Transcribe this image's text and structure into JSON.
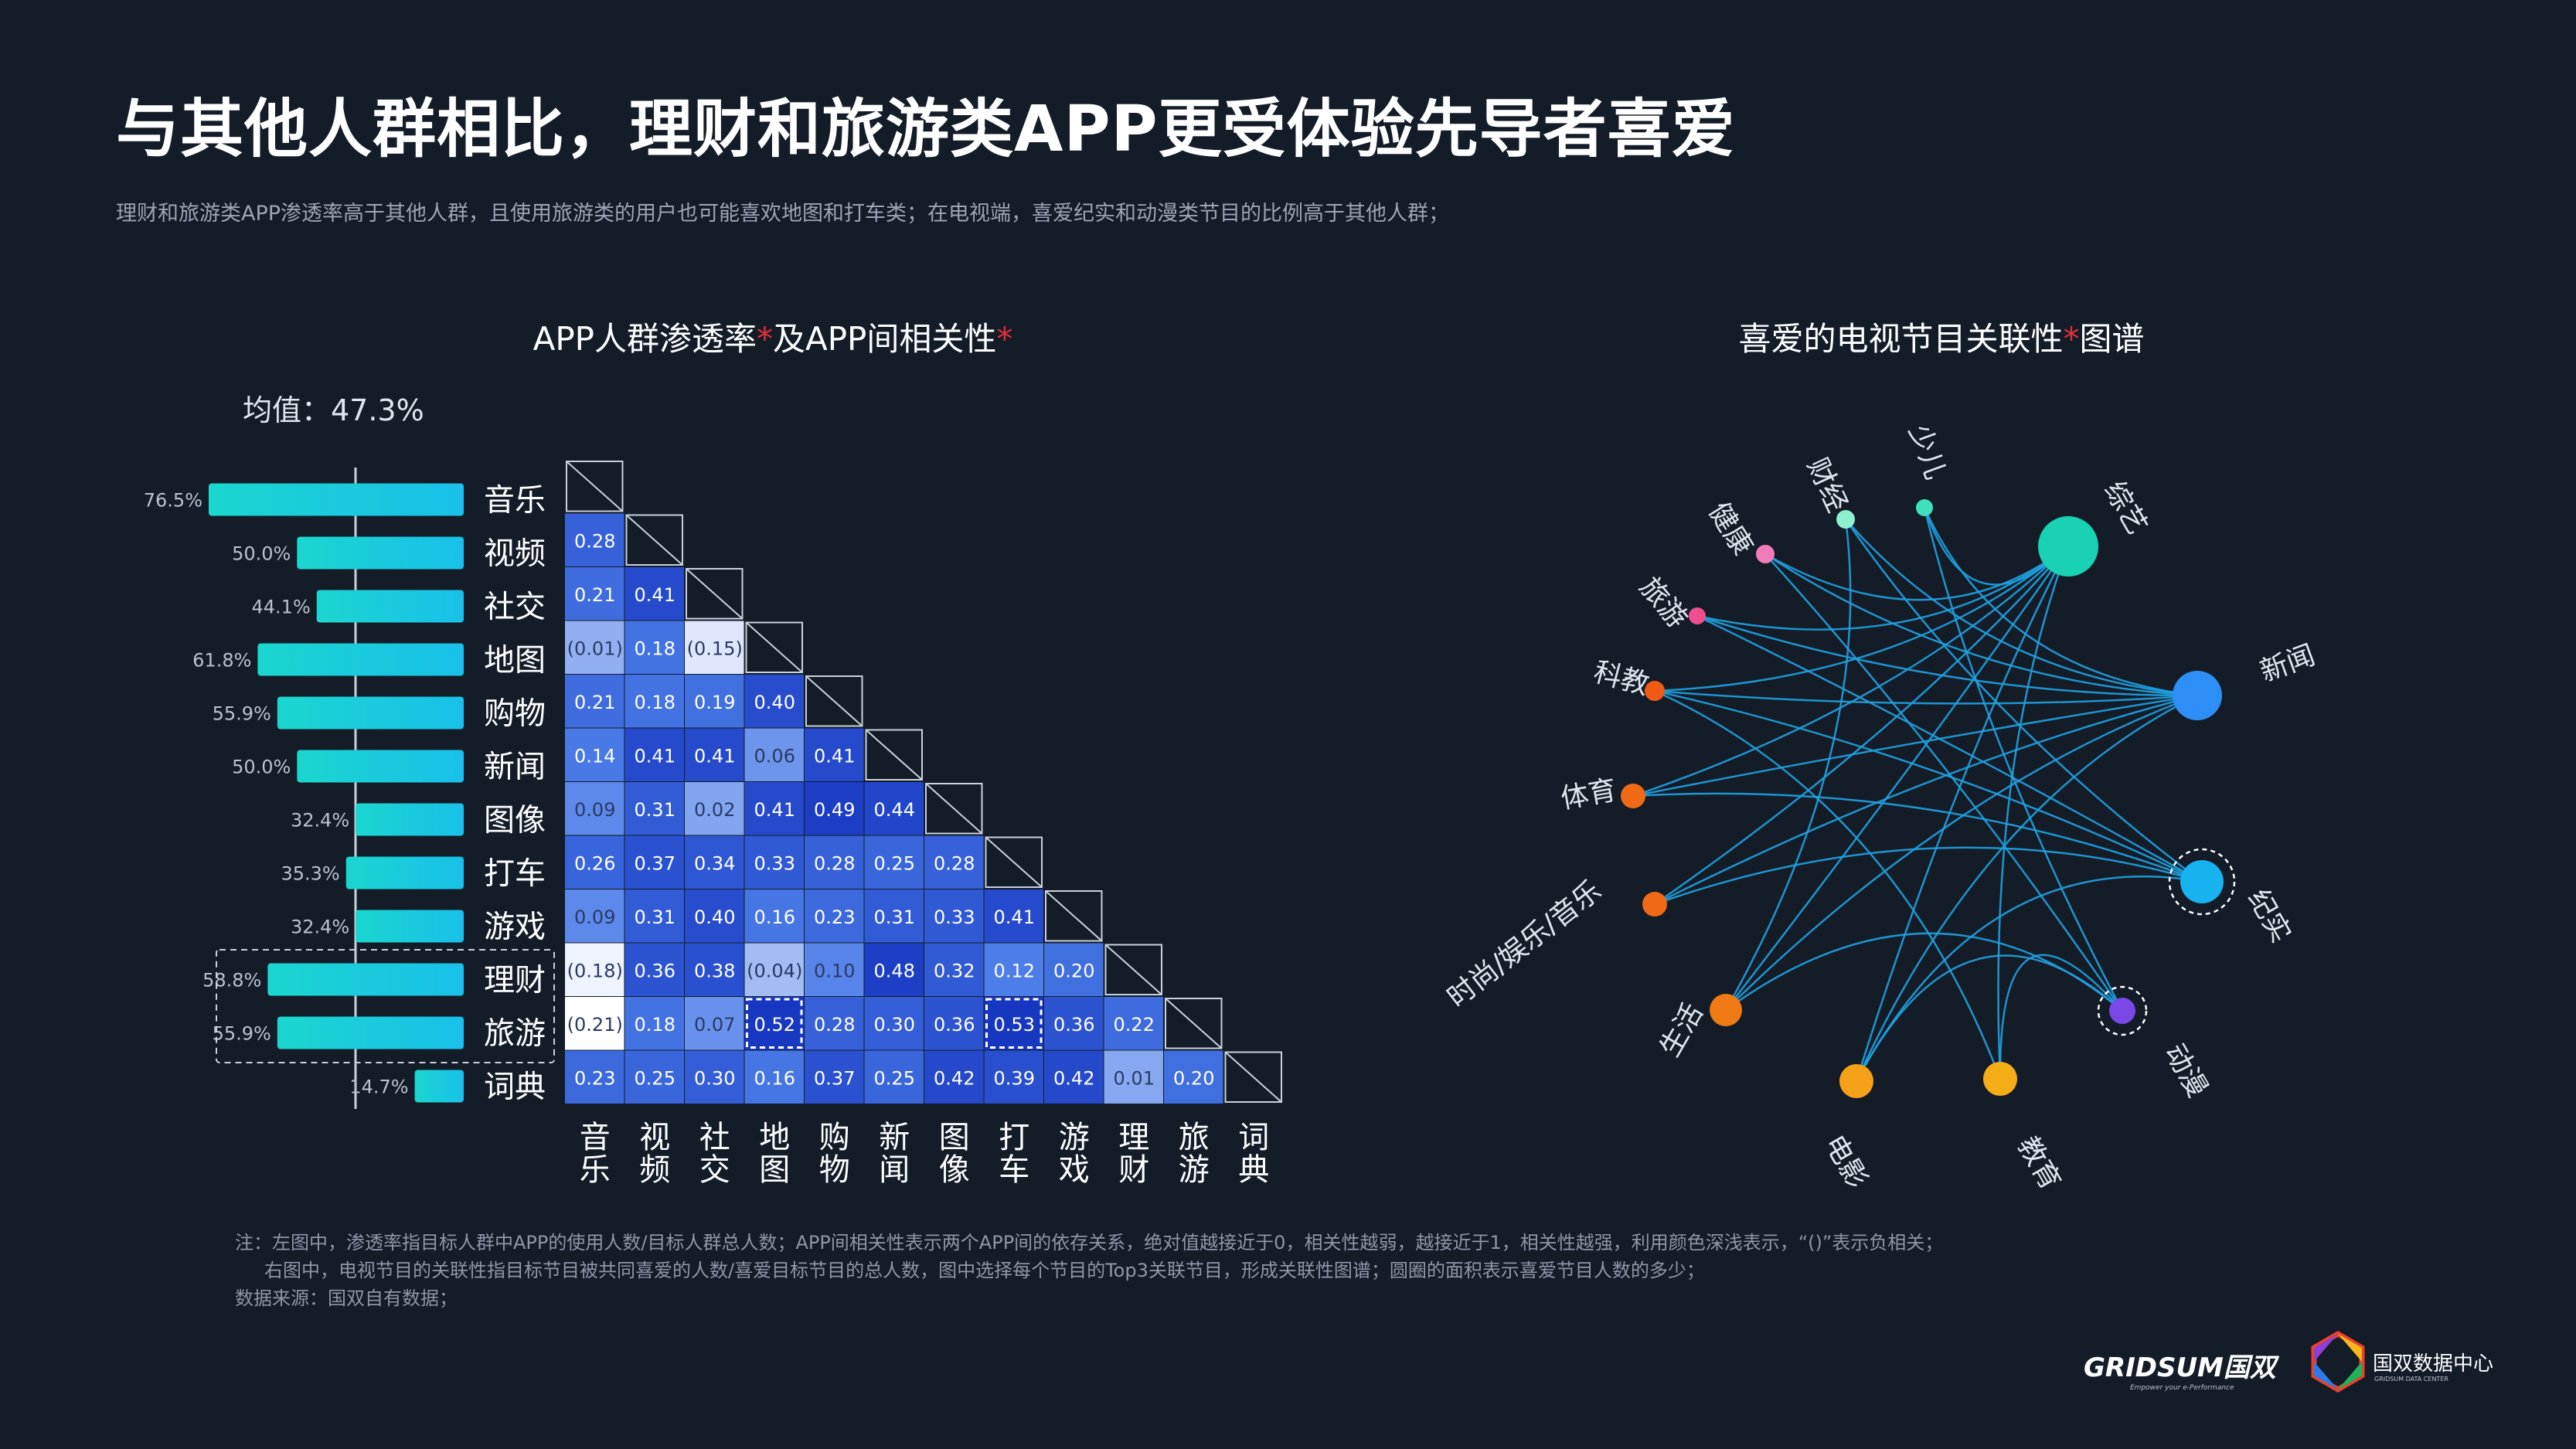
{
  "title": "与其他人群相比，理财和旅游类APP更受体验先导者喜爱",
  "subtitle": "理财和旅游类APP渗透率高于其他人群，且使用旅游类的用户也可能喜欢地图和打车类；在电视端，喜爱纪实和动漫类节目的比例高于其他人群；",
  "left_panel": {
    "title": "APP人群渗透率",
    "title_mid": "及APP间相关性",
    "star": "*"
  },
  "right_panel": {
    "title": "喜爱的电视节目关联性",
    "title_end": "图谱",
    "star": "*"
  },
  "mean_label": "均值：47.3%",
  "notes": {
    "line1": "注：左图中，渗透率指目标人群中APP的使用人数/目标人群总人数；APP间相关性表示两个APP间的依存关系，绝对值越接近于0，相关性越弱，越接近于1，相关性越强，利用颜色深浅表示，“()”表示负相关；",
    "line2": "右图中，电视节目的关联性指目标节目被共同喜爱的人数/喜爱目标节目的总人数，图中选择每个节目的Top3关联节目，形成关联性图谱；圆圈的面积表示喜爱节目人数的多少；",
    "line3": "数据来源：国双自有数据；"
  },
  "logos": {
    "gridsum": "GRIDSUM国双",
    "gridsum_sub": "Empower your e-Performance",
    "center": "国双数据中心",
    "center_sub": "GRIDSUM DATA CENTER"
  },
  "chart_data": [
    {
      "type": "bar",
      "orientation": "horizontal",
      "title": "APP人群渗透率",
      "categories": [
        "音乐",
        "视频",
        "社交",
        "地图",
        "购物",
        "新闻",
        "图像",
        "打车",
        "游戏",
        "理财",
        "旅游",
        "词典"
      ],
      "values": [
        76.5,
        50.0,
        44.1,
        61.8,
        55.9,
        50.0,
        32.4,
        35.3,
        32.4,
        58.8,
        55.9,
        14.7
      ],
      "value_labels": [
        "76.5%",
        "50.0%",
        "44.1%",
        "61.8%",
        "55.9%",
        "50.0%",
        "32.4%",
        "35.3%",
        "32.4%",
        "58.8%",
        "55.9%",
        "14.7%"
      ],
      "unit": "%",
      "mean": 47.3,
      "highlighted": [
        "理财",
        "旅游"
      ],
      "colors": {
        "bar_start": "#1ad6cf",
        "bar_end": "#19c0ea"
      }
    },
    {
      "type": "heatmap",
      "title": "APP间相关性",
      "layout": "lower-triangle",
      "row_labels": [
        "音乐",
        "视频",
        "社交",
        "地图",
        "购物",
        "新闻",
        "图像",
        "打车",
        "游戏",
        "理财",
        "旅游",
        "词典"
      ],
      "col_labels": [
        "音乐",
        "视频",
        "社交",
        "地图",
        "购物",
        "新闻",
        "图像",
        "打车",
        "游戏",
        "理财",
        "旅游",
        "词典"
      ],
      "values": [
        [],
        [
          0.28
        ],
        [
          0.21,
          0.41
        ],
        [
          -0.01,
          0.18,
          -0.15
        ],
        [
          0.21,
          0.18,
          0.19,
          0.4
        ],
        [
          0.14,
          0.41,
          0.41,
          0.06,
          0.41
        ],
        [
          0.09,
          0.31,
          0.02,
          0.41,
          0.49,
          0.44
        ],
        [
          0.26,
          0.37,
          0.34,
          0.33,
          0.28,
          0.25,
          0.28
        ],
        [
          0.09,
          0.31,
          0.4,
          0.16,
          0.23,
          0.31,
          0.33,
          0.41
        ],
        [
          -0.18,
          0.36,
          0.38,
          -0.04,
          0.1,
          0.48,
          0.32,
          0.12,
          0.2
        ],
        [
          -0.21,
          0.18,
          0.07,
          0.52,
          0.28,
          0.3,
          0.36,
          0.53,
          0.36,
          0.22
        ],
        [
          0.23,
          0.25,
          0.3,
          0.16,
          0.37,
          0.25,
          0.42,
          0.39,
          0.42,
          0.01,
          0.2
        ]
      ],
      "labels": [
        [],
        [
          "0.28"
        ],
        [
          "0.21",
          "0.41"
        ],
        [
          "(0.01)",
          "0.18",
          "(0.15)"
        ],
        [
          "0.21",
          "0.18",
          "0.19",
          "0.40"
        ],
        [
          "0.14",
          "0.41",
          "0.41",
          "0.06",
          "0.41"
        ],
        [
          "0.09",
          "0.31",
          "0.02",
          "0.41",
          "0.49",
          "0.44"
        ],
        [
          "0.26",
          "0.37",
          "0.34",
          "0.33",
          "0.28",
          "0.25",
          "0.28"
        ],
        [
          "0.09",
          "0.31",
          "0.40",
          "0.16",
          "0.23",
          "0.31",
          "0.33",
          "0.41"
        ],
        [
          "(0.18)",
          "0.36",
          "0.38",
          "(0.04)",
          "0.10",
          "0.48",
          "0.32",
          "0.12",
          "0.20"
        ],
        [
          "(0.21)",
          "0.18",
          "0.07",
          "0.52",
          "0.28",
          "0.30",
          "0.36",
          "0.53",
          "0.36",
          "0.22"
        ],
        [
          "0.23",
          "0.25",
          "0.30",
          "0.16",
          "0.37",
          "0.25",
          "0.42",
          "0.39",
          "0.42",
          "0.01",
          "0.20"
        ]
      ],
      "highlighted_cells": [
        [
          10,
          3
        ],
        [
          10,
          7
        ]
      ],
      "colors": {
        "light": "#ffffff",
        "dark": "#1637c0"
      }
    },
    {
      "type": "network",
      "title": "喜爱的电视节目关联性图谱",
      "nodes": [
        {
          "name": "综艺",
          "size": 6,
          "color": "#19d2b4"
        },
        {
          "name": "新闻",
          "size": 5,
          "color": "#2d8ff5"
        },
        {
          "name": "纪实",
          "size": 4,
          "color": "#17b3f0",
          "highlighted": true
        },
        {
          "name": "动漫",
          "size": 2,
          "color": "#7a48e6",
          "highlighted": true
        },
        {
          "name": "教育",
          "size": 3,
          "color": "#f5ad17"
        },
        {
          "name": "电影",
          "size": 3,
          "color": "#f5a117"
        },
        {
          "name": "生活",
          "size": 3,
          "color": "#f07a14"
        },
        {
          "name": "时尚/娱乐/音乐",
          "size": 2,
          "color": "#f06914"
        },
        {
          "name": "体育",
          "size": 2,
          "color": "#f06914"
        },
        {
          "name": "科教",
          "size": 1.5,
          "color": "#f05a14"
        },
        {
          "name": "旅游",
          "size": 1,
          "color": "#ef4f8f"
        },
        {
          "name": "健康",
          "size": 1,
          "color": "#f07db9"
        },
        {
          "name": "财经",
          "size": 1,
          "color": "#8ff0cf"
        },
        {
          "name": "少儿",
          "size": 1,
          "color": "#3fe0bd"
        }
      ],
      "edges": [
        [
          "健康",
          "新闻"
        ],
        [
          "健康",
          "动漫"
        ],
        [
          "健康",
          "综艺"
        ],
        [
          "财经",
          "新闻"
        ],
        [
          "财经",
          "生活"
        ],
        [
          "财经",
          "纪实"
        ],
        [
          "少儿",
          "综艺"
        ],
        [
          "少儿",
          "动漫"
        ],
        [
          "少儿",
          "新闻"
        ],
        [
          "综艺",
          "生活"
        ],
        [
          "综艺",
          "电影"
        ],
        [
          "综艺",
          "时尚/娱乐/音乐"
        ],
        [
          "综艺",
          "体育"
        ],
        [
          "综艺",
          "科教"
        ],
        [
          "综艺",
          "旅游"
        ],
        [
          "新闻",
          "体育"
        ],
        [
          "新闻",
          "时尚/娱乐/音乐"
        ],
        [
          "新闻",
          "科教"
        ],
        [
          "新闻",
          "生活"
        ],
        [
          "新闻",
          "电影"
        ],
        [
          "新闻",
          "旅游"
        ],
        [
          "纪实",
          "科教"
        ],
        [
          "纪实",
          "体育"
        ],
        [
          "纪实",
          "旅游"
        ],
        [
          "纪实",
          "时尚/娱乐/音乐"
        ],
        [
          "动漫",
          "生活"
        ],
        [
          "动漫",
          "电影"
        ],
        [
          "动漫",
          "教育"
        ],
        [
          "教育",
          "科教"
        ],
        [
          "教育",
          "综艺"
        ],
        [
          "电影",
          "纪实"
        ]
      ]
    }
  ]
}
